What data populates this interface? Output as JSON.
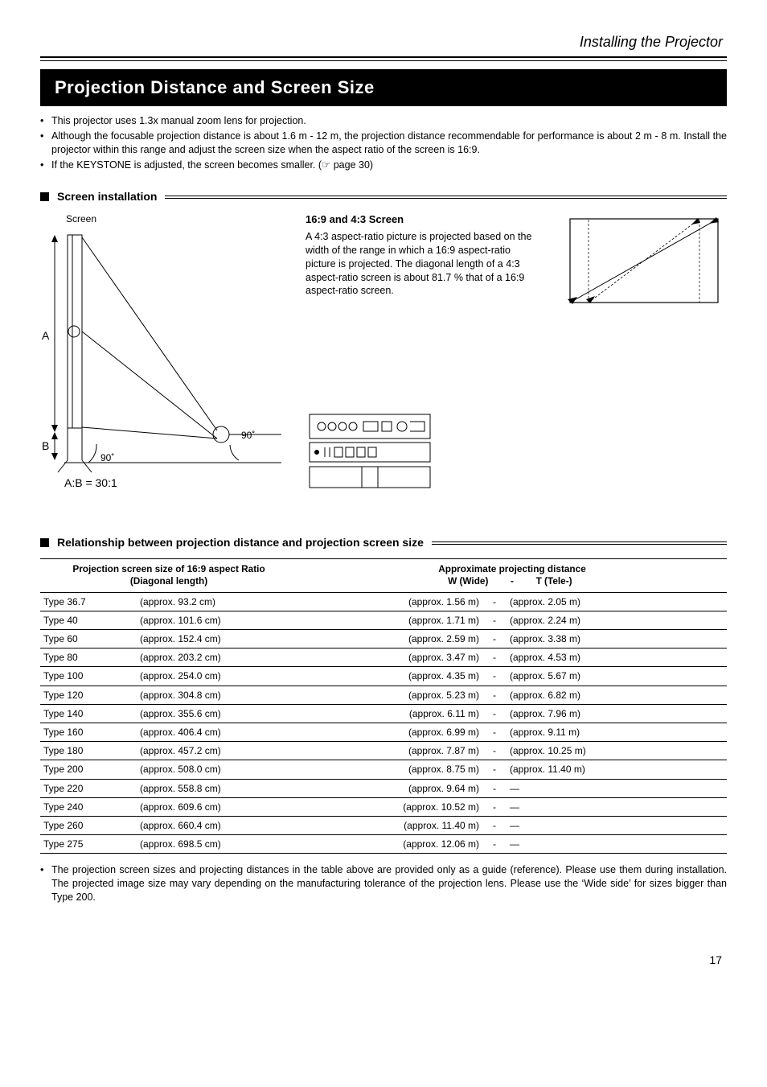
{
  "breadcrumb": "Installing the Projector",
  "section_title": "Projection Distance and Screen Size",
  "intro_bullets": [
    "This projector uses 1.3x manual zoom lens for projection.",
    "Although the focusable projection distance is about 1.6 m - 12 m, the projection distance recommendable for performance is about 2 m - 8 m. Install the projector within this range and adjust the screen size when the aspect ratio of the screen is 16:9.",
    "If the KEYSTONE is adjusted, the screen becomes smaller. (☞ page 30)"
  ],
  "screen_install": {
    "heading": "Screen installation",
    "screen_label": "Screen",
    "ratio_label": "A:B  = 30:1",
    "letter_A": "A",
    "letter_B": "B",
    "angle_90": "90˚",
    "sixteen_nine_title": "16:9 and 4:3 Screen",
    "sixteen_nine_body": "A 4:3 aspect-ratio picture is projected based on the width of the range in which a 16:9 aspect-ratio picture is projected. The diagonal length of a 4:3 aspect-ratio screen is about 81.7 % that of a 16:9 aspect-ratio screen."
  },
  "rel_heading": "Relationship between projection distance and projection screen size",
  "table": {
    "header_left_line1": "Projection screen size of 16:9 aspect Ratio",
    "header_left_line2": "(Diagonal length)",
    "header_right_line1": "Approximate projecting distance",
    "header_right_wide": "W (Wide)",
    "header_right_dash": "-",
    "header_right_tele": "T (Tele-)",
    "rows": [
      {
        "type": "Type 36.7",
        "diag": "(approx. 93.2 cm)",
        "wide": "(approx. 1.56 m)",
        "tele": "(approx. 2.05 m)"
      },
      {
        "type": "Type 40",
        "diag": "(approx. 101.6 cm)",
        "wide": "(approx. 1.71 m)",
        "tele": "(approx. 2.24 m)"
      },
      {
        "type": "Type 60",
        "diag": "(approx. 152.4 cm)",
        "wide": "(approx. 2.59 m)",
        "tele": "(approx. 3.38 m)"
      },
      {
        "type": "Type 80",
        "diag": "(approx. 203.2 cm)",
        "wide": "(approx. 3.47 m)",
        "tele": "(approx. 4.53 m)"
      },
      {
        "type": "Type 100",
        "diag": "(approx. 254.0 cm)",
        "wide": "(approx. 4.35 m)",
        "tele": "(approx. 5.67 m)"
      },
      {
        "type": "Type 120",
        "diag": "(approx. 304.8 cm)",
        "wide": "(approx. 5.23 m)",
        "tele": "(approx. 6.82 m)"
      },
      {
        "type": "Type 140",
        "diag": "(approx. 355.6 cm)",
        "wide": "(approx. 6.11 m)",
        "tele": "(approx. 7.96 m)"
      },
      {
        "type": "Type 160",
        "diag": "(approx. 406.4 cm)",
        "wide": "(approx. 6.99 m)",
        "tele": "(approx. 9.11 m)"
      },
      {
        "type": "Type 180",
        "diag": "(approx. 457.2 cm)",
        "wide": "(approx. 7.87 m)",
        "tele": "(approx. 10.25 m)"
      },
      {
        "type": "Type 200",
        "diag": "(approx. 508.0 cm)",
        "wide": "(approx. 8.75 m)",
        "tele": "(approx. 11.40 m)"
      },
      {
        "type": "Type 220",
        "diag": "(approx. 558.8 cm)",
        "wide": "(approx. 9.64 m)",
        "tele": "—"
      },
      {
        "type": "Type 240",
        "diag": "(approx. 609.6 cm)",
        "wide": "(approx. 10.52 m)",
        "tele": "—"
      },
      {
        "type": "Type 260",
        "diag": "(approx. 660.4 cm)",
        "wide": "(approx. 11.40 m)",
        "tele": "—"
      },
      {
        "type": "Type 275",
        "diag": "(approx. 698.5 cm)",
        "wide": "(approx. 12.06 m)",
        "tele": "—"
      }
    ]
  },
  "footnote": "The projection screen sizes and projecting distances in the table above are provided only as a guide (reference). Please use them during installation. The projected image size may vary depending on the manufacturing tolerance of the projection lens. Please use the ‘Wide side’ for sizes bigger than Type 200.",
  "page_number": "17",
  "colors": {
    "fg": "#000000",
    "bg": "#ffffff"
  }
}
